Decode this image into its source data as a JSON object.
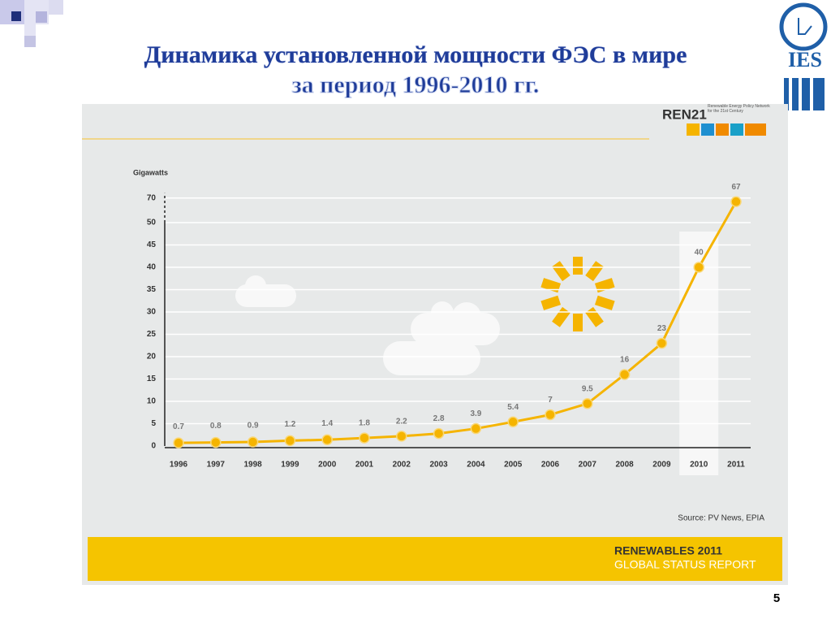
{
  "slide": {
    "title_lines": [
      "Динамика установленной  мощности ФЭС в мире",
      "за период 1996-2010 гг."
    ],
    "logo": "IES",
    "page_number": "5"
  },
  "report": {
    "brand": "REN21",
    "brand_note": "Renewable Energy Policy Network for the 21st Century",
    "footer_lines": [
      "RENEWABLES 2011",
      "GLOBAL STATUS REPORT"
    ],
    "source": "Source: PV News, EPIA"
  },
  "chart_data": {
    "type": "line",
    "ylabel": "Gigawatts",
    "categories": [
      "1996",
      "1997",
      "1998",
      "1999",
      "2000",
      "2001",
      "2002",
      "2003",
      "2004",
      "2005",
      "2006",
      "2007",
      "2008",
      "2009",
      "2010",
      "2011"
    ],
    "values": [
      0.7,
      0.8,
      0.9,
      1.2,
      1.4,
      1.8,
      2.2,
      2.8,
      3.9,
      5.4,
      7,
      9.5,
      16,
      23,
      40,
      67
    ],
    "color": "#f5b400",
    "highlight": 14,
    "ylim": [
      0,
      70
    ],
    "yticks": [
      0,
      5,
      10,
      15,
      20,
      25,
      30,
      35,
      40,
      45,
      50,
      70
    ],
    "grid": true
  }
}
